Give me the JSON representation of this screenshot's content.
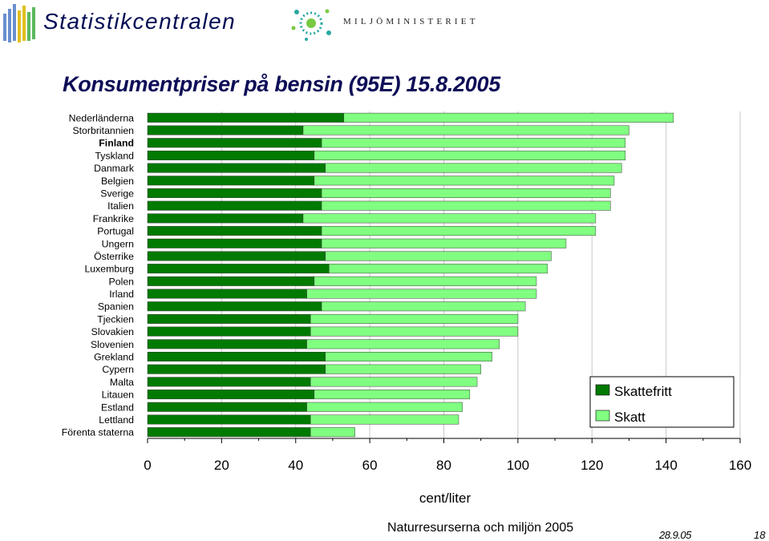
{
  "header": {
    "stat_logo_text": "Statistikcentralen",
    "ministry_text": "MILJÖMINISTERIET"
  },
  "footer": {
    "source": "Naturresurserna och miljön 2005",
    "date": "28.9.05",
    "page": "18"
  },
  "colors": {
    "skattefritt": "#007a00",
    "skatt": "#80ff80",
    "title": "#0d0d57"
  },
  "chart_data": {
    "type": "bar",
    "orientation": "horizontal",
    "stacked": true,
    "title": "Konsumentpriser på bensin (95E) 15.8.2005",
    "xlabel": "cent/liter",
    "xlim": [
      0,
      160
    ],
    "xticks": [
      "0",
      "20",
      "40",
      "60",
      "80",
      "100",
      "120",
      "140",
      "160"
    ],
    "grid": "vertical",
    "legend_position": "right",
    "categories": [
      "Nederländerna",
      "Storbritannien",
      "Finland",
      "Tyskland",
      "Danmark",
      "Belgien",
      "Sverige",
      "Italien",
      "Frankrike",
      "Portugal",
      "Ungern",
      "Österrike",
      "Luxemburg",
      "Polen",
      "Irland",
      "Spanien",
      "Tjeckien",
      "Slovakien",
      "Slovenien",
      "Grekland",
      "Cypern",
      "Malta",
      "Litauen",
      "Estland",
      "Lettland",
      "Förenta staterna"
    ],
    "bold_category": "Finland",
    "series": [
      {
        "name": "Skattefritt",
        "values": [
          53,
          42,
          47,
          45,
          48,
          45,
          47,
          47,
          42,
          47,
          47,
          48,
          49,
          45,
          43,
          47,
          44,
          44,
          43,
          48,
          48,
          44,
          45,
          43,
          44,
          44
        ]
      },
      {
        "name": "Skatt",
        "values": [
          89,
          88,
          82,
          84,
          80,
          81,
          78,
          78,
          79,
          74,
          66,
          61,
          59,
          60,
          62,
          55,
          56,
          56,
          52,
          45,
          42,
          45,
          42,
          42,
          40,
          12
        ]
      }
    ]
  }
}
